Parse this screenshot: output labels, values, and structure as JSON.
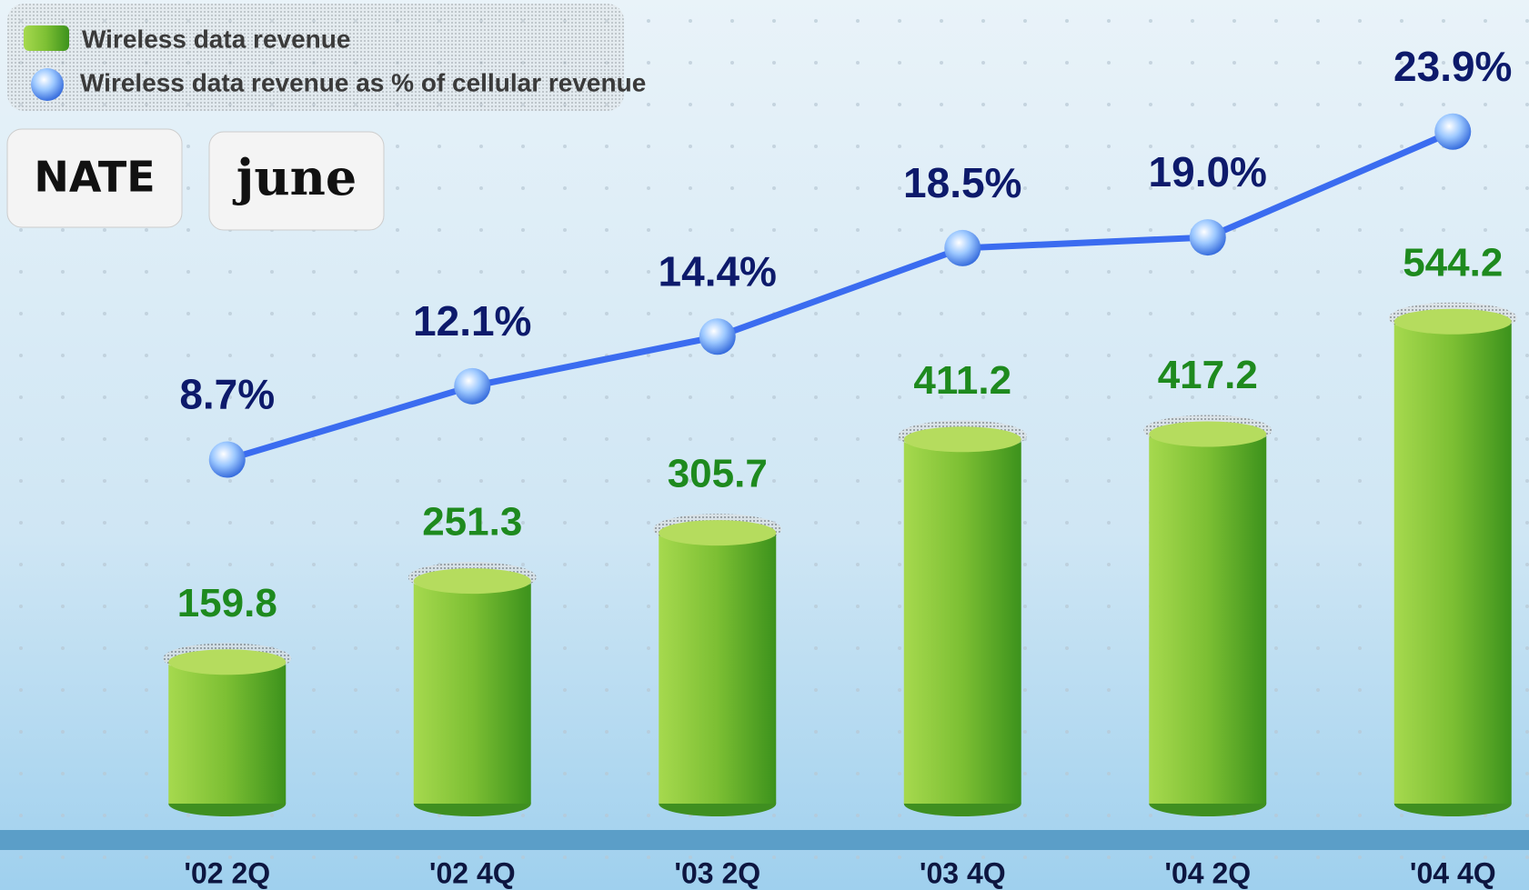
{
  "chart_data": {
    "type": "bar",
    "categories": [
      "'02 2Q",
      "'02 4Q",
      "'03 2Q",
      "'03 4Q",
      "'04 2Q",
      "'04 4Q"
    ],
    "series": [
      {
        "name": "Wireless data revenue",
        "type": "bar",
        "color": "#8cc63f",
        "values": [
          159.8,
          251.3,
          305.7,
          411.2,
          417.2,
          544.2
        ]
      },
      {
        "name": "Wireless data revenue as % of cellular revenue",
        "type": "line",
        "axis": "y2",
        "color": "#3b6cf0",
        "values": [
          8.7,
          12.1,
          14.4,
          18.5,
          19.0,
          23.9
        ],
        "value_labels": [
          "8.7%",
          "12.1%",
          "14.4%",
          "18.5%",
          "19.0%",
          "23.9%"
        ]
      }
    ],
    "ylim": [
      0,
      900
    ],
    "y2lim": [
      0,
      30
    ],
    "legend": "top-left"
  },
  "logos": [
    "NATE",
    "june"
  ]
}
